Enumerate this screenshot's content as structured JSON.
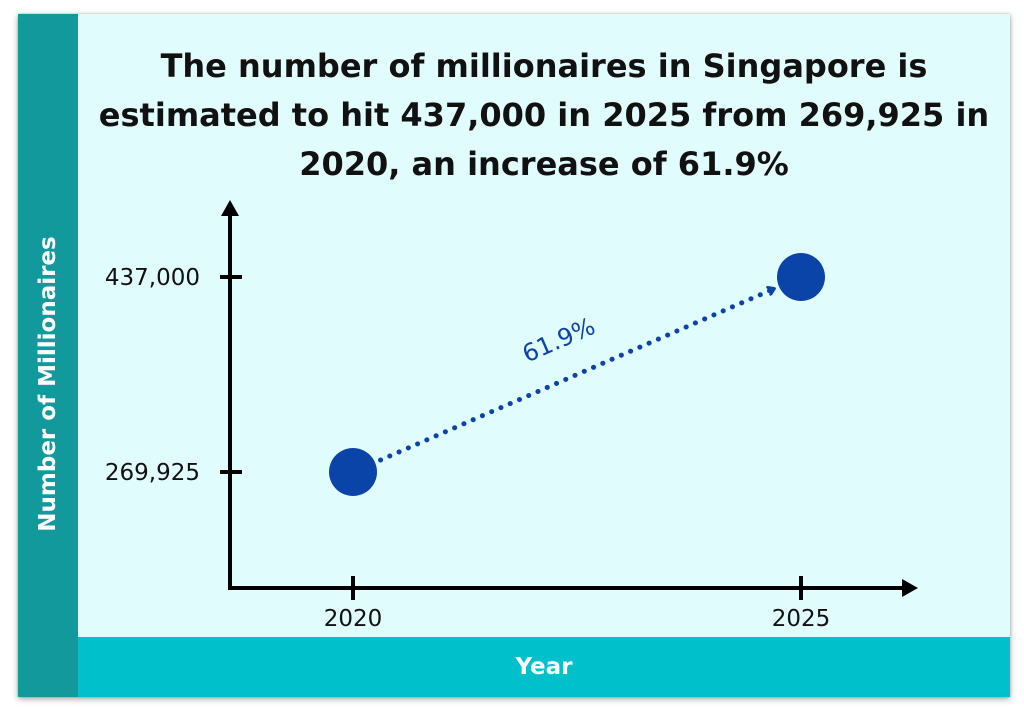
{
  "title": "The number of millionaires in Singapore is estimated to hit 437,000 in 2025 from 269,925 in 2020, an increase of 61.9%",
  "colors": {
    "background": "#e1fcfc",
    "side_band": "#12999b",
    "bottom_band": "#00c1cb",
    "point": "#0a44a8",
    "axis": "#000000"
  },
  "chart_data": {
    "type": "scatter",
    "title": "The number of millionaires in Singapore is estimated to hit 437,000 in 2025 from 269,925 in 2020, an increase of 61.9%",
    "xlabel": "Year",
    "ylabel": "Number of Millionaires",
    "categories": [
      "2020",
      "2025"
    ],
    "values": [
      269925,
      437000
    ],
    "y_tick_labels": [
      "269,925",
      "437,000"
    ],
    "annotation": "61.9%",
    "grid": false,
    "legend": "none"
  }
}
